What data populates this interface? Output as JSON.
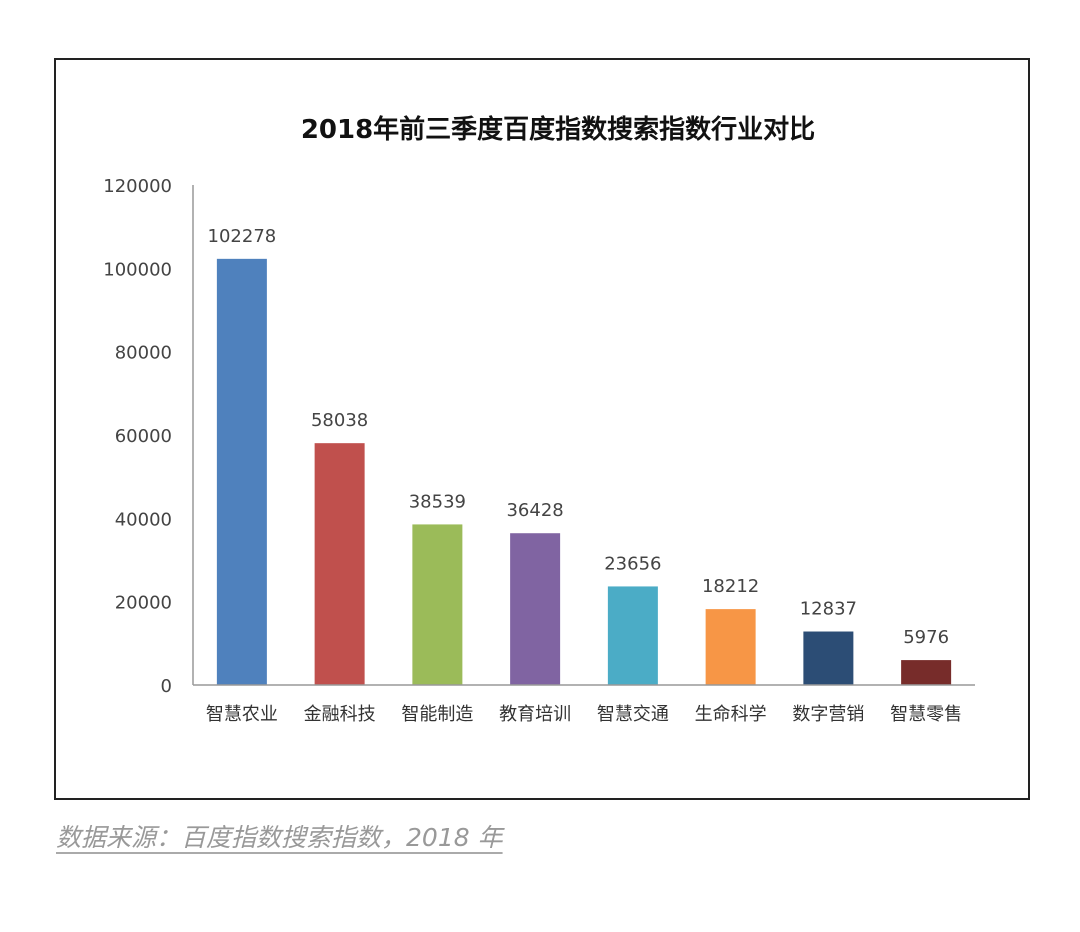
{
  "chart_data": {
    "type": "bar",
    "title": "2018年前三季度百度指数搜索指数行业对比",
    "xlabel": "",
    "ylabel": "",
    "ylim": [
      0,
      120000
    ],
    "yticks": [
      0,
      20000,
      40000,
      60000,
      80000,
      100000,
      120000
    ],
    "grid": false,
    "categories": [
      "智慧农业",
      "金融科技",
      "智能制造",
      "教育培训",
      "智慧交通",
      "生命科学",
      "数字营销",
      "智慧零售"
    ],
    "values": [
      102278,
      58038,
      38539,
      36428,
      23656,
      18212,
      12837,
      5976
    ],
    "colors": [
      "#4F81BD",
      "#C0504D",
      "#9BBB59",
      "#8064A2",
      "#4BACC6",
      "#F79646",
      "#2C4D75",
      "#772C2A"
    ]
  },
  "caption": "数据来源：百度指数搜索指数，2018 年"
}
